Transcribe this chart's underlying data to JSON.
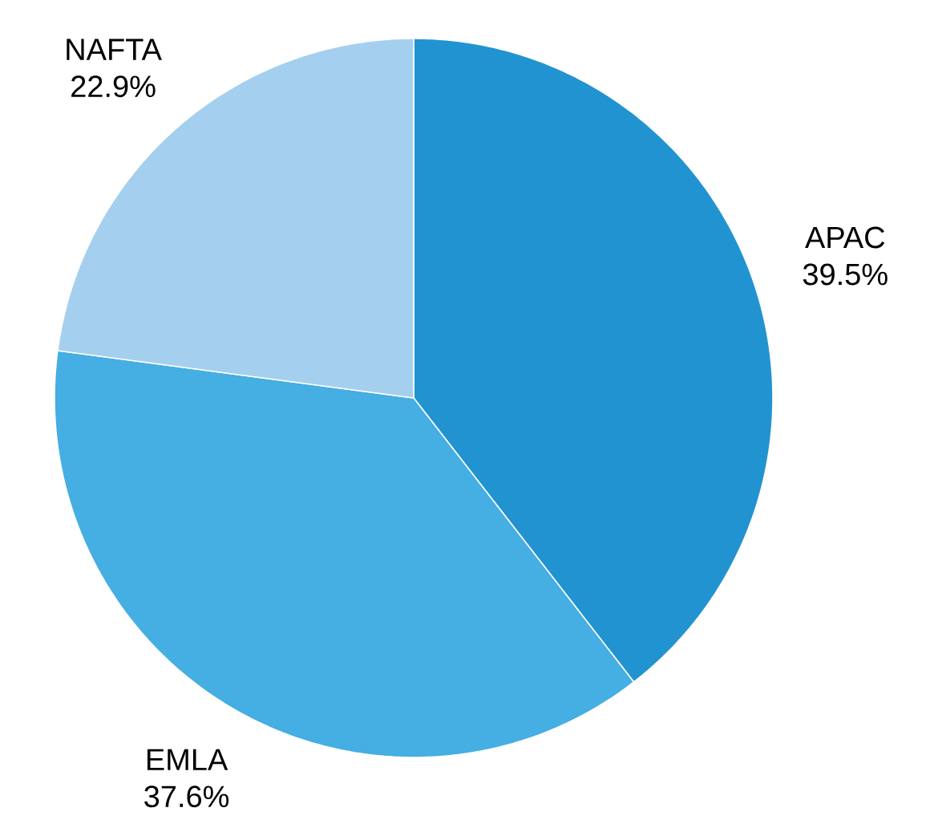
{
  "chart_data": {
    "type": "pie",
    "categories": [
      "APAC",
      "EMLA",
      "NAFTA"
    ],
    "values": [
      39.5,
      37.6,
      22.9
    ],
    "value_labels": [
      "39.5%",
      "37.6%",
      "22.9%"
    ],
    "colors": [
      "#2293d1",
      "#45aee2",
      "#a5cfee"
    ]
  }
}
